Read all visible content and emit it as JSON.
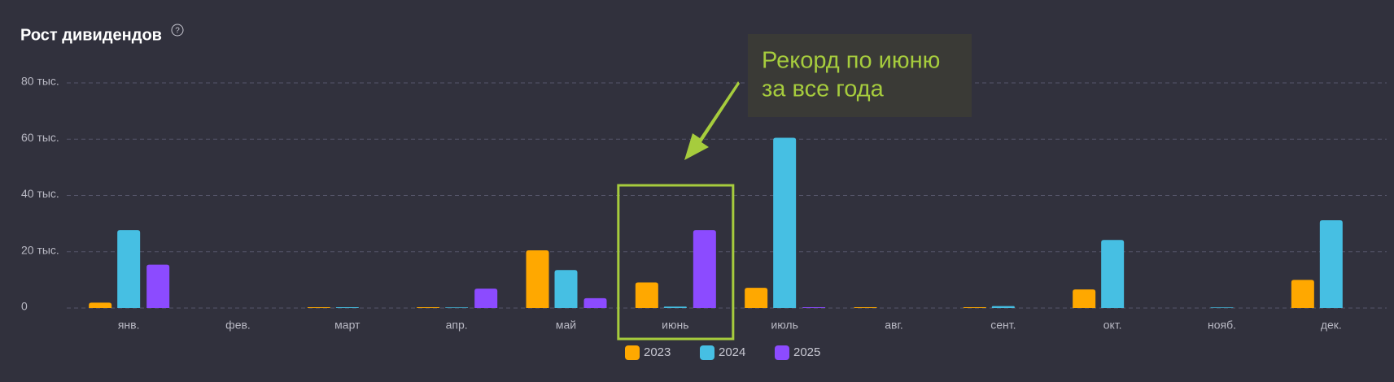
{
  "chart_data": {
    "type": "bar",
    "title": "Рост дивидендов",
    "help_icon": "?",
    "categories": [
      "янв.",
      "фев.",
      "март",
      "апр.",
      "май",
      "июнь",
      "июль",
      "авг.",
      "сент.",
      "окт.",
      "нояб.",
      "дек."
    ],
    "series": [
      {
        "name": "2023",
        "color": "#ffa800",
        "values": [
          1900,
          0,
          300,
          300,
          20500,
          9100,
          7200,
          300,
          300,
          6600,
          0,
          10000
        ]
      },
      {
        "name": "2024",
        "color": "#46bfe3",
        "values": [
          27700,
          0,
          300,
          200,
          13500,
          500,
          60500,
          0,
          700,
          24200,
          200,
          31200
        ]
      },
      {
        "name": "2025",
        "color": "#8c4bff",
        "values": [
          15400,
          0,
          0,
          6900,
          3500,
          27700,
          300,
          0,
          0,
          0,
          0,
          0
        ]
      }
    ],
    "ylim": [
      0,
      80000
    ],
    "yticks": [
      {
        "value": 0,
        "label": "0"
      },
      {
        "value": 20000,
        "label": "20 тыс."
      },
      {
        "value": 40000,
        "label": "40 тыс."
      },
      {
        "value": 60000,
        "label": "60 тыс."
      },
      {
        "value": 80000,
        "label": "80 тыс."
      }
    ],
    "grid": true,
    "legend": "bottom",
    "annotation": {
      "lines": [
        "Рекорд по июню",
        "за все года"
      ],
      "color": "#a6cc3d",
      "category_index": 5
    }
  }
}
